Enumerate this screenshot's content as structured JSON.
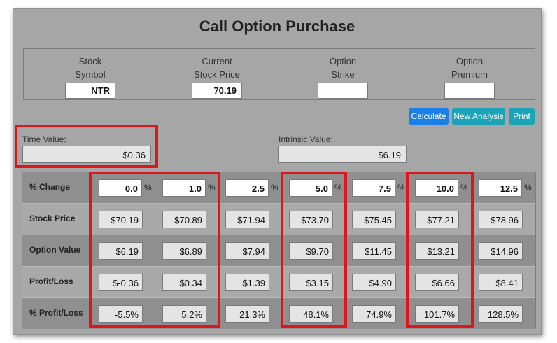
{
  "title": "Call Option Purchase",
  "inputs": [
    {
      "label_line1": "Stock",
      "label_line2": "Symbol",
      "value": "NTR"
    },
    {
      "label_line1": "Current",
      "label_line2": "Stock Price",
      "value": "70.19"
    },
    {
      "label_line1": "Option",
      "label_line2": "Strike",
      "value": ""
    },
    {
      "label_line1": "Option",
      "label_line2": "Premium",
      "value": ""
    }
  ],
  "buttons": {
    "calculate": "Calculate",
    "new_analysis": "New Analysis",
    "print": "Print"
  },
  "time_value": {
    "label": "Time Value:",
    "value": "$0.36"
  },
  "intrinsic_value": {
    "label": "Intrinsic Value:",
    "value": "$6.19"
  },
  "table": {
    "row_labels": [
      "% Change",
      "Stock Price",
      "Option Value",
      "Profit/Loss",
      "% Profit/Loss"
    ],
    "pct_symbol": "%",
    "pct_change": [
      "0.0",
      "1.0",
      "2.5",
      "5.0",
      "7.5",
      "10.0",
      "12.5"
    ],
    "stock_price": [
      "$70.19",
      "$70.89",
      "$71.94",
      "$73.70",
      "$75.45",
      "$77.21",
      "$78.96"
    ],
    "option_value": [
      "$6.19",
      "$6.89",
      "$7.94",
      "$9.70",
      "$11.45",
      "$13.21",
      "$14.96"
    ],
    "profit_loss": [
      "$-0.36",
      "$0.34",
      "$1.39",
      "$3.15",
      "$4.90",
      "$6.66",
      "$8.41"
    ],
    "pct_profit_loss": [
      "-5.5%",
      "5.2%",
      "21.3%",
      "48.1%",
      "74.9%",
      "101.7%",
      "128.5%"
    ]
  },
  "colors": {
    "highlight": "#e0141b",
    "calculate_button": "#1a80e8",
    "secondary_button": "#1ba3b8"
  }
}
